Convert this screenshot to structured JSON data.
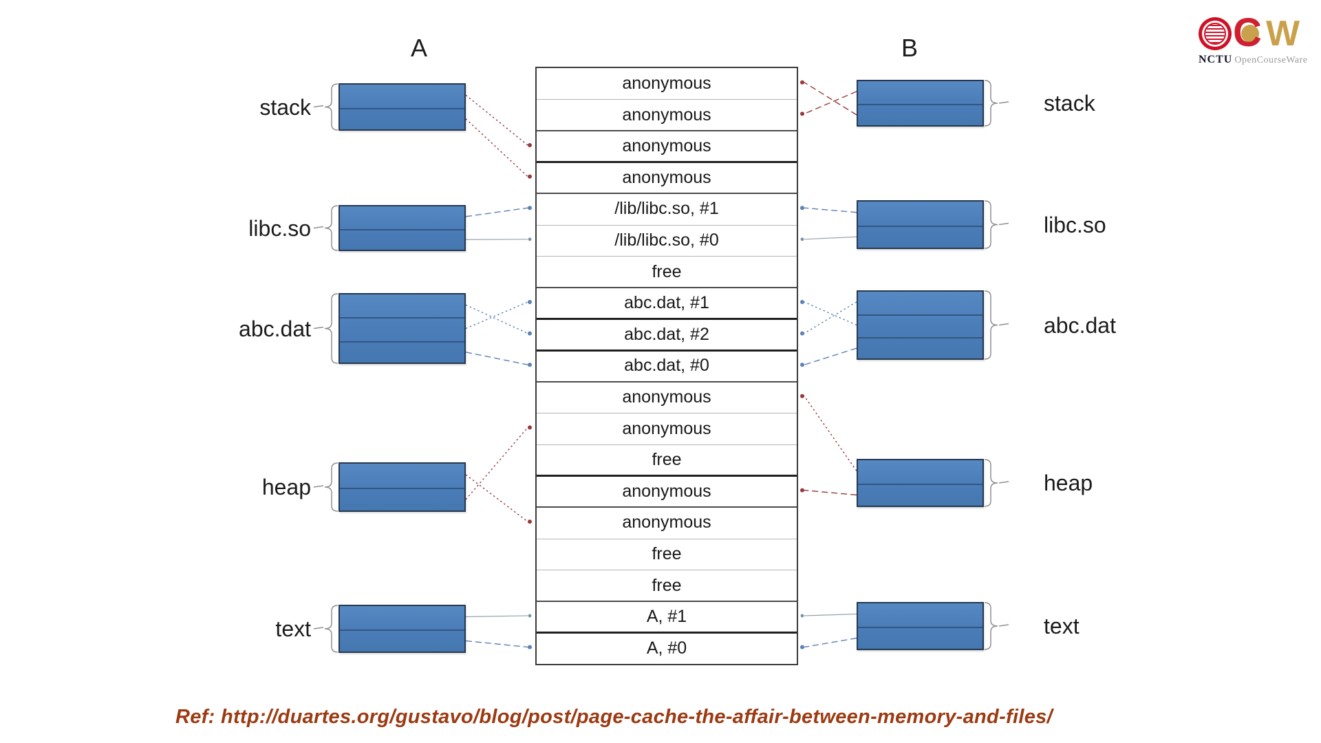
{
  "processes": {
    "A": {
      "title": "A",
      "regions": [
        {
          "id": "stack",
          "label": "stack",
          "segments": 2
        },
        {
          "id": "libc",
          "label": "libc.so",
          "segments": 2
        },
        {
          "id": "abc",
          "label": "abc.dat",
          "segments": 3
        },
        {
          "id": "heap",
          "label": "heap",
          "segments": 2
        },
        {
          "id": "text",
          "label": "text",
          "segments": 2
        }
      ]
    },
    "B": {
      "title": "B",
      "regions": [
        {
          "id": "stack",
          "label": "stack",
          "segments": 2
        },
        {
          "id": "libc",
          "label": "libc.so",
          "segments": 2
        },
        {
          "id": "abc",
          "label": "abc.dat",
          "segments": 3
        },
        {
          "id": "heap",
          "label": "heap",
          "segments": 2
        },
        {
          "id": "text",
          "label": "text",
          "segments": 2
        }
      ]
    }
  },
  "page_cache_rows": [
    "anonymous",
    "anonymous",
    "anonymous",
    "anonymous",
    "/lib/libc.so, #1",
    "/lib/libc.so, #0",
    "free",
    "abc.dat, #1",
    "abc.dat, #2",
    "abc.dat, #0",
    "anonymous",
    "anonymous",
    "free",
    "anonymous",
    "anonymous",
    "free",
    "free",
    "A, #1",
    "A, #0"
  ],
  "connections": [
    {
      "process": "A",
      "region": "stack",
      "segment": 0,
      "row": 2,
      "color": "red",
      "style": "dotted"
    },
    {
      "process": "A",
      "region": "stack",
      "segment": 1,
      "row": 3,
      "color": "red",
      "style": "dotted"
    },
    {
      "process": "A",
      "region": "libc",
      "segment": 0,
      "row": 4,
      "color": "blue",
      "style": "dashed"
    },
    {
      "process": "A",
      "region": "libc",
      "segment": 1,
      "row": 5,
      "color": "gray",
      "style": "solid"
    },
    {
      "process": "A",
      "region": "abc",
      "segment": 0,
      "row": 8,
      "color": "blue",
      "style": "dotted"
    },
    {
      "process": "A",
      "region": "abc",
      "segment": 1,
      "row": 7,
      "color": "blue",
      "style": "dotted"
    },
    {
      "process": "A",
      "region": "abc",
      "segment": 2,
      "row": 9,
      "color": "blue",
      "style": "dashed"
    },
    {
      "process": "A",
      "region": "heap",
      "segment": 0,
      "row": 14,
      "color": "red",
      "style": "dotted"
    },
    {
      "process": "A",
      "region": "heap",
      "segment": 1,
      "row": 11,
      "color": "red",
      "style": "dotted"
    },
    {
      "process": "A",
      "region": "text",
      "segment": 0,
      "row": 17,
      "color": "gray",
      "style": "solid"
    },
    {
      "process": "A",
      "region": "text",
      "segment": 1,
      "row": 18,
      "color": "blue",
      "style": "dashed"
    },
    {
      "process": "B",
      "region": "stack",
      "segment": 0,
      "row": 1,
      "color": "red",
      "style": "dashed"
    },
    {
      "process": "B",
      "region": "stack",
      "segment": 1,
      "row": 0,
      "color": "red",
      "style": "dashed"
    },
    {
      "process": "B",
      "region": "libc",
      "segment": 0,
      "row": 4,
      "color": "blue",
      "style": "dashed"
    },
    {
      "process": "B",
      "region": "libc",
      "segment": 1,
      "row": 5,
      "color": "gray",
      "style": "solid"
    },
    {
      "process": "B",
      "region": "abc",
      "segment": 0,
      "row": 8,
      "color": "blue",
      "style": "dotted"
    },
    {
      "process": "B",
      "region": "abc",
      "segment": 1,
      "row": 7,
      "color": "blue",
      "style": "dotted"
    },
    {
      "process": "B",
      "region": "abc",
      "segment": 2,
      "row": 9,
      "color": "blue",
      "style": "dashed"
    },
    {
      "process": "B",
      "region": "heap",
      "segment": 0,
      "row": 10,
      "color": "red",
      "style": "dotted"
    },
    {
      "process": "B",
      "region": "heap",
      "segment": 1,
      "row": 13,
      "color": "red",
      "style": "dashed"
    },
    {
      "process": "B",
      "region": "text",
      "segment": 0,
      "row": 17,
      "color": "gray",
      "style": "solid"
    },
    {
      "process": "B",
      "region": "text",
      "segment": 1,
      "row": 18,
      "color": "blue",
      "style": "dashed"
    }
  ],
  "footer": {
    "reference": "Ref: http://duartes.org/gustavo/blog/post/page-cache-the-affair-between-memory-and-files/"
  },
  "logo": {
    "c": "C",
    "w": "W",
    "org": "NCTU",
    "name": "OpenCourseWare"
  },
  "colors": {
    "box_fill": "#4a7db8",
    "box_border": "#26384f",
    "line_red": "#96393b",
    "line_blue": "#5b80b6",
    "line_gray": "#97a0aa",
    "ref_text": "#9c3a12",
    "logo_red": "#ce1126",
    "logo_gold": "#c9a14c"
  }
}
